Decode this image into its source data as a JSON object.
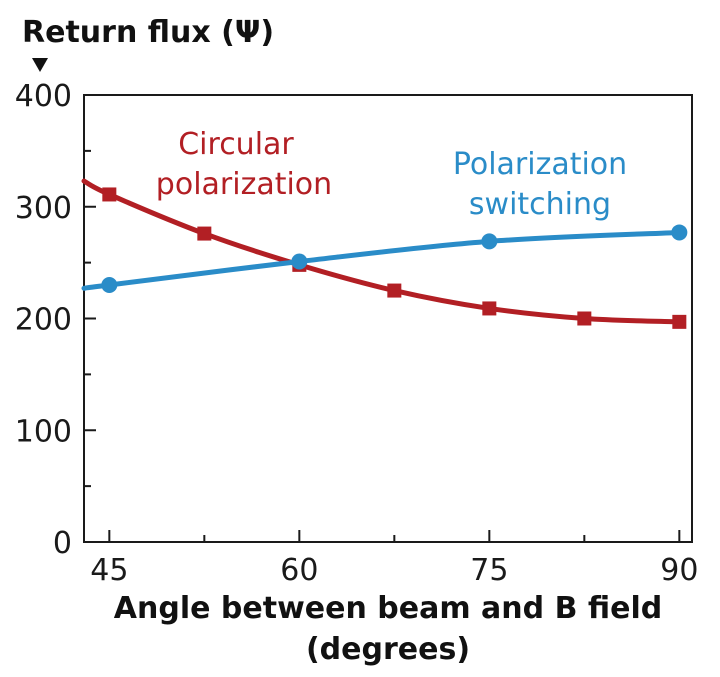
{
  "chart_data": {
    "type": "line",
    "ylabel": "Return flux (Ψ)",
    "xlabel_line1": "Angle between beam and B field",
    "xlabel_line2": "(degrees)",
    "xlim": [
      43,
      91
    ],
    "ylim": [
      0,
      400
    ],
    "x_ticks": [
      45,
      60,
      75,
      90
    ],
    "y_ticks": [
      0,
      100,
      200,
      300,
      400
    ],
    "grid": false,
    "colors": {
      "circular": "#b21f24",
      "switching": "#2a8cc8",
      "axis": "#1a1a1a"
    },
    "series": [
      {
        "id": "circular",
        "name_line1": "Circular",
        "name_line2": "polarization",
        "marker": "square",
        "curve_start": [
          43,
          323
        ],
        "x": [
          45,
          52.5,
          60,
          67.5,
          75,
          82.5,
          90
        ],
        "y": [
          311,
          276,
          248,
          225,
          209,
          200,
          197
        ]
      },
      {
        "id": "switching",
        "name_line1": "Polarization",
        "name_line2": "switching",
        "marker": "circle",
        "curve_start": [
          43,
          227
        ],
        "x": [
          45,
          60,
          75,
          90
        ],
        "y": [
          230,
          251,
          269,
          277
        ]
      }
    ]
  }
}
